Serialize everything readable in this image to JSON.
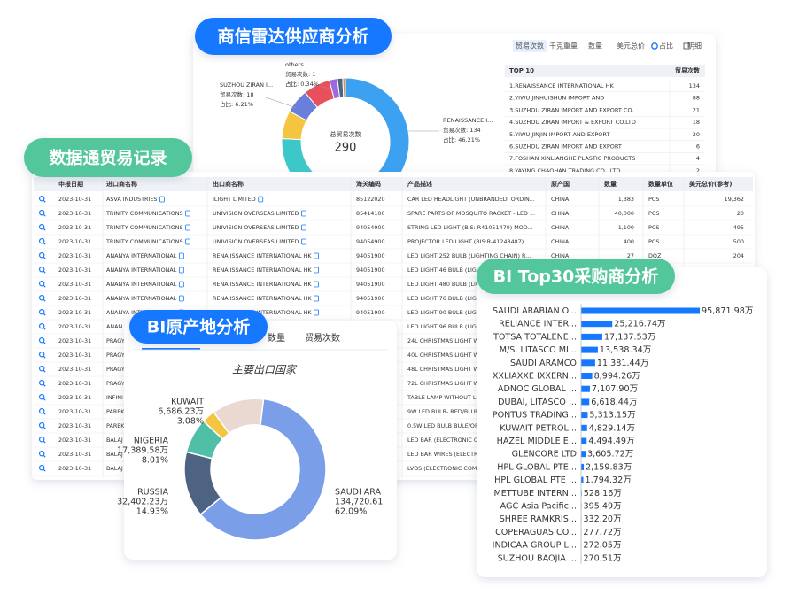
{
  "supplier_panel": {
    "badge": "商信雷达供应商分析",
    "tabs": [
      "贸易次数",
      "千克重量",
      "数量",
      "美元总价",
      "占比",
      "明细"
    ],
    "donut": {
      "center_label": "总贸易次数",
      "total": "290",
      "callouts": [
        {
          "name": "SUZHOU ZIRAN I...",
          "lines": [
            "贸易次数: 18",
            "占比: 6.21%"
          ]
        },
        {
          "name": "others",
          "lines": [
            "贸易次数: 1",
            "占比: 0.34%"
          ]
        },
        {
          "name": "RENAISSANCE I...",
          "lines": [
            "贸易次数: 134",
            "占比: 46.21%"
          ]
        }
      ]
    },
    "top10": {
      "header": [
        "TOP 10",
        "贸易次数"
      ],
      "rows": [
        [
          "1.RENAISSANCE INTERNATIONAL HK",
          134
        ],
        [
          "2.YIWU JINHUISHUN IMPORT AND",
          88
        ],
        [
          "3.SUZHOU ZIRAN IMPORT AND EXPORT CO.",
          21
        ],
        [
          "4.SUZHOU ZIRAN IMPORT & EXPORT CO.LTD",
          18
        ],
        [
          "5.YIWU JINJIN IMPORT AND EXPORT",
          20
        ],
        [
          "6.SUZHOU ZIRAN IMPORT AND EXPORT",
          6
        ],
        [
          "7.FOSHAN XINLIANGHE PLASTIC PRODUCTS",
          4
        ],
        [
          "8.YAYING CHAOHAN TRADING CO., LTD",
          2
        ]
      ]
    }
  },
  "trade_panel": {
    "badge": "数据通贸易记录",
    "columns": [
      "申报日期",
      "进口商名称",
      "出口商名称",
      "海关编码",
      "产品描述",
      "原产国",
      "数量",
      "数量单位",
      "美元总价(参考)"
    ],
    "rows": [
      [
        "2023-10-31",
        "ASVA INDUSTRIES",
        "ILIGHT LIMITED",
        "85122020",
        "CAR LED HEADLIGHT (UNBRANDED, ORDIN...",
        "CHINA",
        "1,383",
        "PCS",
        "19,362"
      ],
      [
        "2023-10-31",
        "TRINITY COMMUNICATIONS",
        "UNIVISION OVERSEAS LIMITED",
        "85414100",
        "SPARE PARTS OF MOSQUITO RACKET - LED ...",
        "CHINA",
        "40,000",
        "PCS",
        "20"
      ],
      [
        "2023-10-31",
        "TRINITY COMMUNICATIONS",
        "UNIVISION OVERSEAS LIMITED",
        "94054900",
        "STRING LED LIGHT (BIS: R41051470) MOD...",
        "CHINA",
        "1,100",
        "PCS",
        "495"
      ],
      [
        "2023-10-31",
        "TRINITY COMMUNICATIONS",
        "UNIVISION OVERSEAS LIMITED",
        "94054900",
        "PROJECTOR LED LIGHT (BIS:R-41248487)",
        "CHINA",
        "400",
        "PCS",
        "500"
      ],
      [
        "2023-10-31",
        "ANANYA INTERNATIONAL",
        "RENAIISSANCE INTERNATIONAL HK",
        "94051900",
        "LED LIGHT 252 BULB (LIGHTING CHAIN) R...",
        "CHINA",
        "27",
        "DOZ",
        "204"
      ],
      [
        "2023-10-31",
        "ANANYA INTERNATIONAL",
        "RENAIISSANCE INTERNATIONAL HK",
        "94051900",
        "LED LIGHT 46 BULB (LIG",
        null,
        null,
        null,
        null
      ],
      [
        "2023-10-31",
        "ANANYA INTERNATIONAL",
        "RENAIISSANCE INTERNATIONAL HK",
        "94051900",
        "LED LIGHT 480 BULB (LIG",
        null,
        null,
        null,
        null
      ],
      [
        "2023-10-31",
        "ANANYA INTERNATIONAL",
        "RENAIISSANCE INTERNATIONAL HK",
        "94051900",
        "LED LIGHT 76 BULB (LIG",
        null,
        null,
        null,
        null
      ],
      [
        "2023-10-31",
        "ANANYA INTERNATIONAL",
        "RENAIISSANCE INTERNATIONAL HK",
        "94051900",
        "LED LIGHT 90 BULB (LIG",
        null,
        null,
        null,
        null
      ],
      [
        "2023-10-31",
        "ANAN",
        null,
        null,
        "LED LIGHT 96 BULB (LIG",
        null,
        null,
        null,
        null
      ],
      [
        "2023-10-31",
        "PRAGY",
        null,
        null,
        "24L CHRISTMAS LIGHT W",
        null,
        null,
        null,
        null
      ],
      [
        "2023-10-31",
        "PRAGY",
        null,
        null,
        "40L CHRISTMAS LIGHT W",
        null,
        null,
        null,
        null
      ],
      [
        "2023-10-31",
        "PRAGY",
        null,
        null,
        "48L CHRISTMAS LIGHT W",
        null,
        null,
        null,
        null
      ],
      [
        "2023-10-31",
        "PRAGY",
        null,
        null,
        "72L CHRISTMAS LIGHT W",
        null,
        null,
        null,
        null
      ],
      [
        "2023-10-31",
        "INFINI",
        null,
        null,
        "TABLE LAMP WITHOUT LED",
        null,
        null,
        null,
        null
      ],
      [
        "2023-10-31",
        "PAREK",
        null,
        null,
        "9W LED BULB- RED/BLUE",
        null,
        null,
        null,
        null
      ],
      [
        "2023-10-31",
        "PAREK",
        null,
        null,
        "0.5W LED BULB BULE/OR",
        null,
        null,
        null,
        null
      ],
      [
        "2023-10-31",
        "BALAJ",
        null,
        null,
        "LED BAR (ELECTRONIC C",
        null,
        null,
        null,
        null
      ],
      [
        "2023-10-31",
        "BALAJ",
        null,
        null,
        "LED BAR WIRES (ELECTR",
        null,
        null,
        null,
        null
      ],
      [
        "2023-10-31",
        "BALAJ",
        null,
        null,
        "LVDS (ELECTRONIC COMP",
        null,
        null,
        null,
        null
      ]
    ]
  },
  "origin_panel": {
    "badge": "BI原产地分析",
    "tabs": [
      "数量",
      "贸易次数"
    ],
    "subtitle": "主要出口国家",
    "segments": [
      {
        "name": "SAUDI ARA",
        "value_label": "134,720.61",
        "percent": 62.09,
        "percent_label": "62.09%",
        "color": "#7b9ee8"
      },
      {
        "name": "RUSSIA",
        "value_label": "32,402.23万",
        "percent": 14.93,
        "percent_label": "14.93%",
        "color": "#4e6282"
      },
      {
        "name": "NIGERIA",
        "value_label": "17,389.58万",
        "percent": 8.01,
        "percent_label": "8.01%",
        "color": "#4fbfa8"
      },
      {
        "name": "KUWAIT",
        "value_label": "6,686.23万",
        "percent": 3.08,
        "percent_label": "3.08%",
        "color": "#f5c542"
      }
    ]
  },
  "buyer_panel": {
    "badge": "BI Top30采购商分析",
    "color": "#1677ff",
    "bars": [
      {
        "name": "SAUDI ARABIAN O...",
        "value": 95871.98,
        "value_label": "95,871.98万"
      },
      {
        "name": "RELIANCE INTER...",
        "value": 25216.74,
        "value_label": "25,216.74万"
      },
      {
        "name": "TOTSA TOTALENE...",
        "value": 17137.53,
        "value_label": "17,137.53万"
      },
      {
        "name": "M/S. LITASCO MI...",
        "value": 13538.34,
        "value_label": "13,538.34万"
      },
      {
        "name": "SAUDI ARAMCO",
        "value": 11381.44,
        "value_label": "11,381.44万"
      },
      {
        "name": "XXLIAXXE IXXERN...",
        "value": 8994.26,
        "value_label": "8,994.26万"
      },
      {
        "name": "ADNOC GLOBAL ...",
        "value": 7107.9,
        "value_label": "7,107.90万"
      },
      {
        "name": "DUBAI, LITASCO ...",
        "value": 6618.44,
        "value_label": "6,618.44万"
      },
      {
        "name": "PONTUS TRADING...",
        "value": 5313.15,
        "value_label": "5,313.15万"
      },
      {
        "name": "KUWAIT PETROL...",
        "value": 4829.14,
        "value_label": "4,829.14万"
      },
      {
        "name": "HAZEL MIDDLE E...",
        "value": 4494.49,
        "value_label": "4,494.49万"
      },
      {
        "name": "GLENCORE LTD",
        "value": 3605.72,
        "value_label": "3,605.72万"
      },
      {
        "name": "HPL GLOBAL PTE...",
        "value": 2159.83,
        "value_label": "2,159.83万"
      },
      {
        "name": "HPL GLOBAL PTE ...",
        "value": 1794.32,
        "value_label": "1,794.32万"
      },
      {
        "name": "METTUBE INTERN...",
        "value": 528.16,
        "value_label": "528.16万"
      },
      {
        "name": "AGC Asia Pacific...",
        "value": 395.49,
        "value_label": "395.49万"
      },
      {
        "name": "SHREE RAMKRIS...",
        "value": 332.2,
        "value_label": "332.20万"
      },
      {
        "name": "COPERAGUAS CO...",
        "value": 277.72,
        "value_label": "277.72万"
      },
      {
        "name": "INDICAA GROUP L...",
        "value": 272.05,
        "value_label": "272.05万"
      },
      {
        "name": "SUZHOU BAOJIA ...",
        "value": 270.51,
        "value_label": "270.51万"
      }
    ]
  }
}
